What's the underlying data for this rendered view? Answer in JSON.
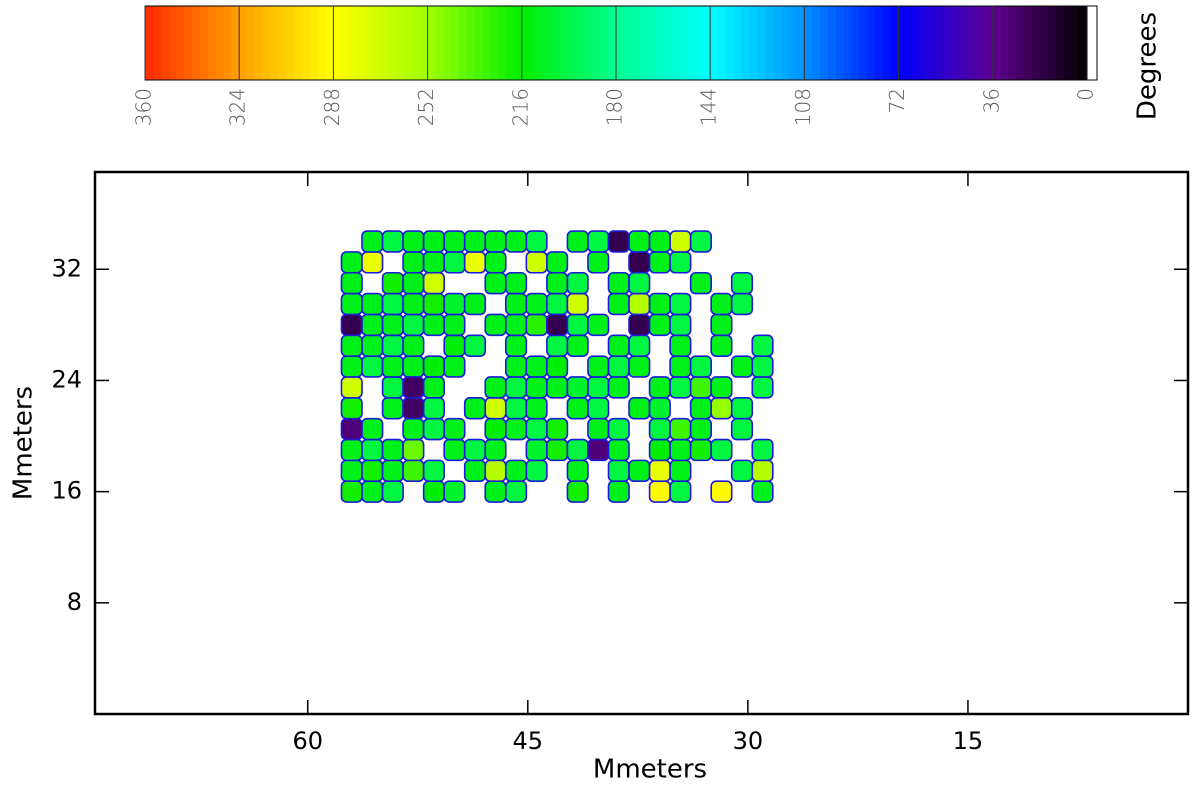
{
  "chart_data": {
    "type": "heatmap",
    "xlabel": "Mmeters",
    "ylabel": "Mmeters",
    "colorbar_label": "Degrees",
    "xlim": [
      74.5,
      0
    ],
    "xticks": [
      60,
      45,
      30,
      15
    ],
    "ylim": [
      0,
      39
    ],
    "yticks": [
      8,
      16,
      24,
      32
    ],
    "clim": [
      360,
      0
    ],
    "cticks": [
      360,
      324,
      288,
      252,
      216,
      180,
      144,
      108,
      72,
      36,
      0
    ],
    "colormap": [
      "#ff2a00",
      "#ffa000",
      "#ffff00",
      "#a0ff00",
      "#00ee00",
      "#00ff90",
      "#00ffff",
      "#0090ff",
      "#0000ff",
      "#600090",
      "#000000"
    ],
    "x": [
      57,
      55.6,
      54.2,
      52.8,
      51.4,
      50,
      48.6,
      47.2,
      45.8,
      44.4,
      43,
      41.6,
      40.2,
      38.8,
      37.4,
      36,
      34.6,
      33.2,
      31.8,
      30.4,
      29
    ],
    "y": [
      16,
      17.5,
      19,
      20.5,
      22,
      23.5,
      25,
      26.5,
      28,
      29.5,
      31,
      32.5,
      34
    ],
    "z": [
      [
        220,
        210,
        200,
        null,
        215,
        205,
        null,
        210,
        200,
        null,
        null,
        220,
        null,
        210,
        null,
        290,
        200,
        null,
        290,
        null,
        210
      ],
      [
        210,
        220,
        210,
        230,
        200,
        null,
        210,
        260,
        210,
        200,
        null,
        210,
        null,
        200,
        210,
        280,
        210,
        null,
        null,
        200,
        260
      ],
      [
        210,
        200,
        210,
        240,
        null,
        210,
        200,
        210,
        null,
        205,
        220,
        200,
        30,
        210,
        null,
        215,
        210,
        220,
        200,
        null,
        200
      ],
      [
        30,
        210,
        null,
        210,
        200,
        210,
        null,
        215,
        210,
        200,
        220,
        null,
        210,
        200,
        null,
        200,
        230,
        210,
        null,
        200,
        null
      ],
      [
        220,
        null,
        210,
        25,
        200,
        null,
        210,
        270,
        200,
        210,
        null,
        210,
        200,
        null,
        210,
        205,
        null,
        210,
        250,
        200,
        null
      ],
      [
        270,
        null,
        200,
        25,
        210,
        null,
        null,
        210,
        200,
        210,
        210,
        205,
        200,
        210,
        null,
        210,
        200,
        230,
        210,
        null,
        200
      ],
      [
        210,
        200,
        210,
        210,
        215,
        210,
        null,
        null,
        210,
        210,
        215,
        null,
        210,
        200,
        210,
        null,
        210,
        200,
        null,
        210,
        200
      ],
      [
        210,
        210,
        200,
        210,
        null,
        215,
        200,
        null,
        210,
        null,
        200,
        210,
        null,
        210,
        200,
        null,
        210,
        null,
        210,
        null,
        200
      ],
      [
        20,
        210,
        210,
        200,
        210,
        210,
        null,
        210,
        210,
        225,
        20,
        200,
        210,
        null,
        20,
        210,
        200,
        null,
        210,
        null,
        null
      ],
      [
        210,
        210,
        200,
        210,
        220,
        205,
        210,
        null,
        210,
        210,
        200,
        270,
        null,
        210,
        260,
        210,
        200,
        null,
        210,
        200,
        null
      ],
      [
        210,
        null,
        220,
        210,
        270,
        null,
        null,
        210,
        210,
        null,
        210,
        200,
        null,
        210,
        200,
        null,
        null,
        210,
        null,
        200,
        null
      ],
      [
        210,
        280,
        null,
        210,
        210,
        200,
        280,
        210,
        null,
        270,
        210,
        null,
        210,
        null,
        20,
        210,
        200,
        null,
        null,
        null,
        null
      ],
      [
        null,
        210,
        200,
        210,
        210,
        210,
        210,
        210,
        210,
        200,
        null,
        210,
        200,
        20,
        210,
        210,
        270,
        200,
        null,
        null,
        null
      ]
    ]
  }
}
